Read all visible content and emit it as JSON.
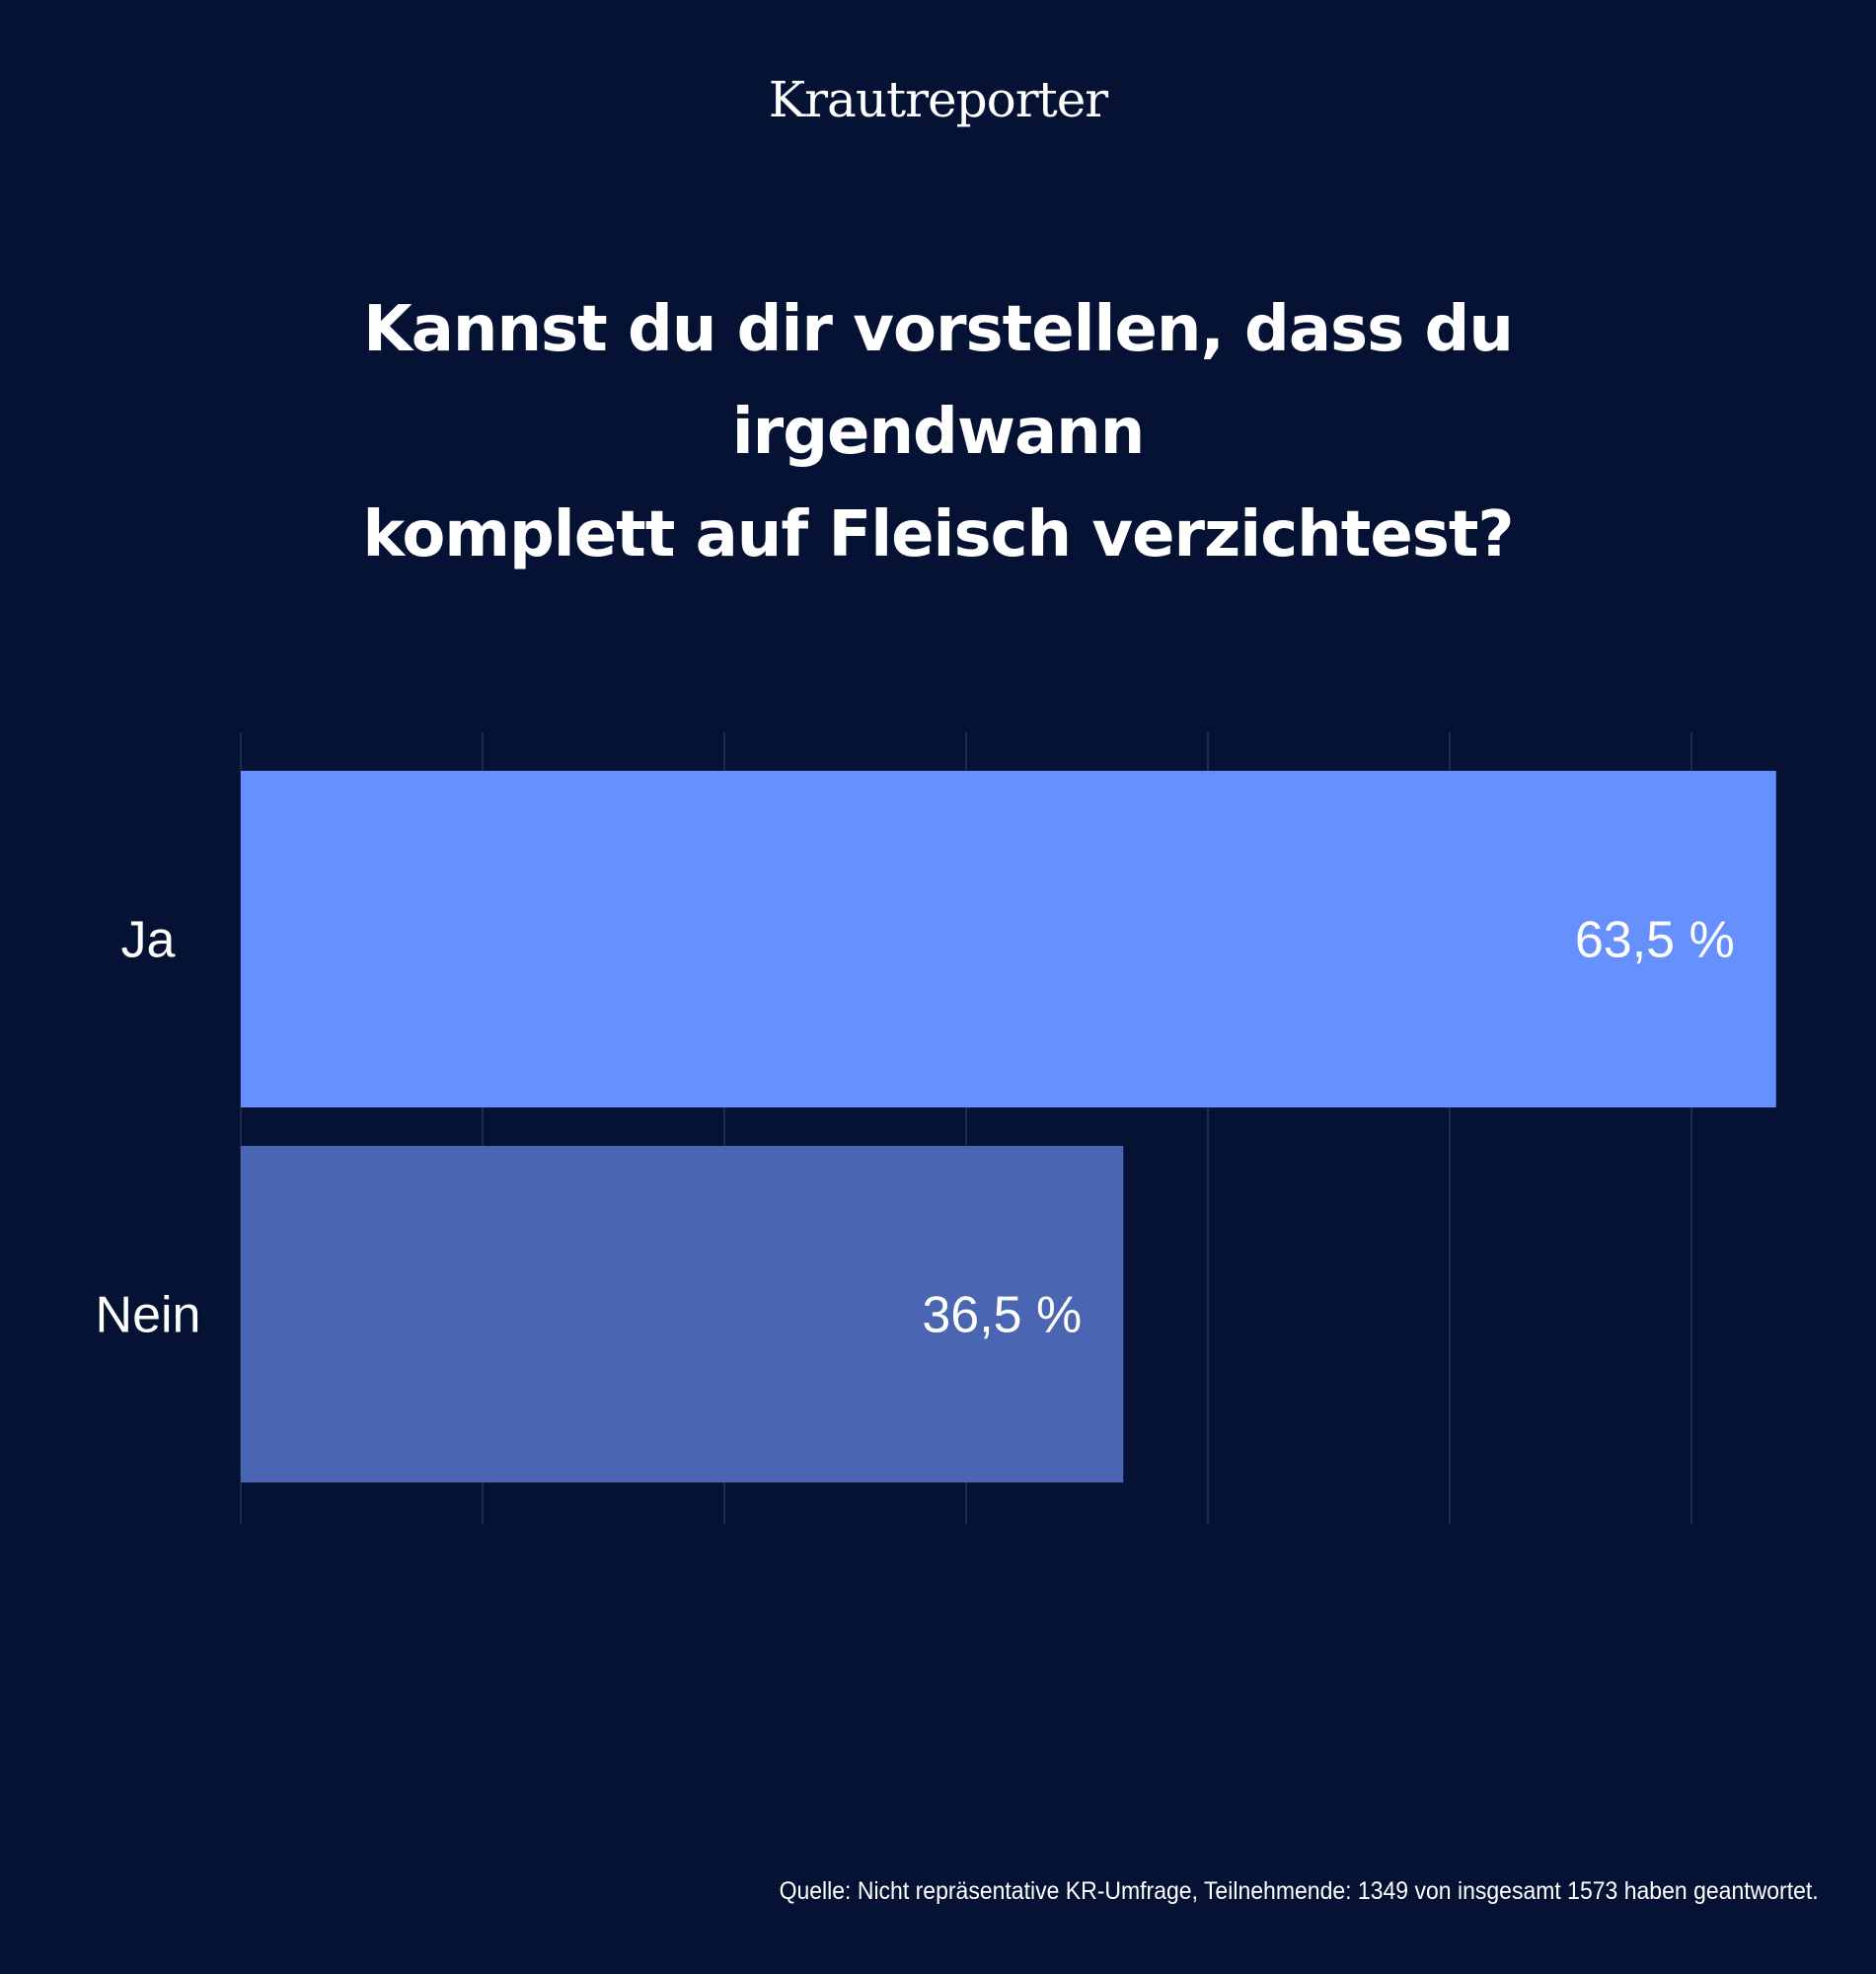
{
  "brand": "Krautreporter",
  "title_lines": [
    "Kannst du dir vorstellen, dass du irgendwann",
    "komplett auf Fleisch verzichtest?"
  ],
  "source": "Quelle: Nicht repräsentative KR-Umfrage, Teilnehmende: 1349 von insgesamt 1573 haben geantwortet.",
  "colors": {
    "background": "#051233",
    "grid": "#1c2a4c",
    "text": "#ffffff"
  },
  "chart_data": {
    "type": "bar",
    "orientation": "horizontal",
    "title": "Kannst du dir vorstellen, dass du irgendwann komplett auf Fleisch verzichtest?",
    "categories": [
      "Ja",
      "Nein"
    ],
    "values": [
      63.5,
      36.5
    ],
    "value_labels": [
      "63,5 %",
      "36,5 %"
    ],
    "bar_colors": [
      "#6690fd",
      "#4a66b3"
    ],
    "xlim": [
      0,
      60
    ],
    "grid": true,
    "legend": "none"
  }
}
